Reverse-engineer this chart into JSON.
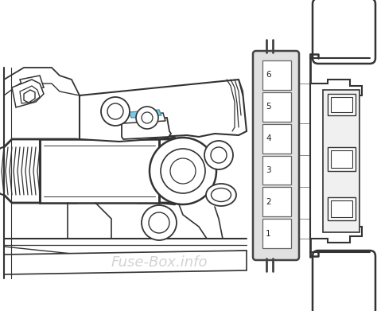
{
  "background_color": "#ffffff",
  "watermark_text": "Fuse-Box.info",
  "watermark_color": "#b0b0b0",
  "watermark_alpha": 0.55,
  "line_color": "#333333",
  "blue_fuse_color": "#7ec8e3",
  "blue_fuse_edge": "#4a9ab5",
  "fuse_box_bg": "#e0e0e0",
  "fuse_box_border": "#444444",
  "slot_bg": "#ffffff",
  "slot_border": "#666666",
  "slots": [
    "6",
    "5",
    "4",
    "3",
    "2",
    "1"
  ],
  "connector_color": "#333333",
  "connector_inner": "#f0f0f0"
}
